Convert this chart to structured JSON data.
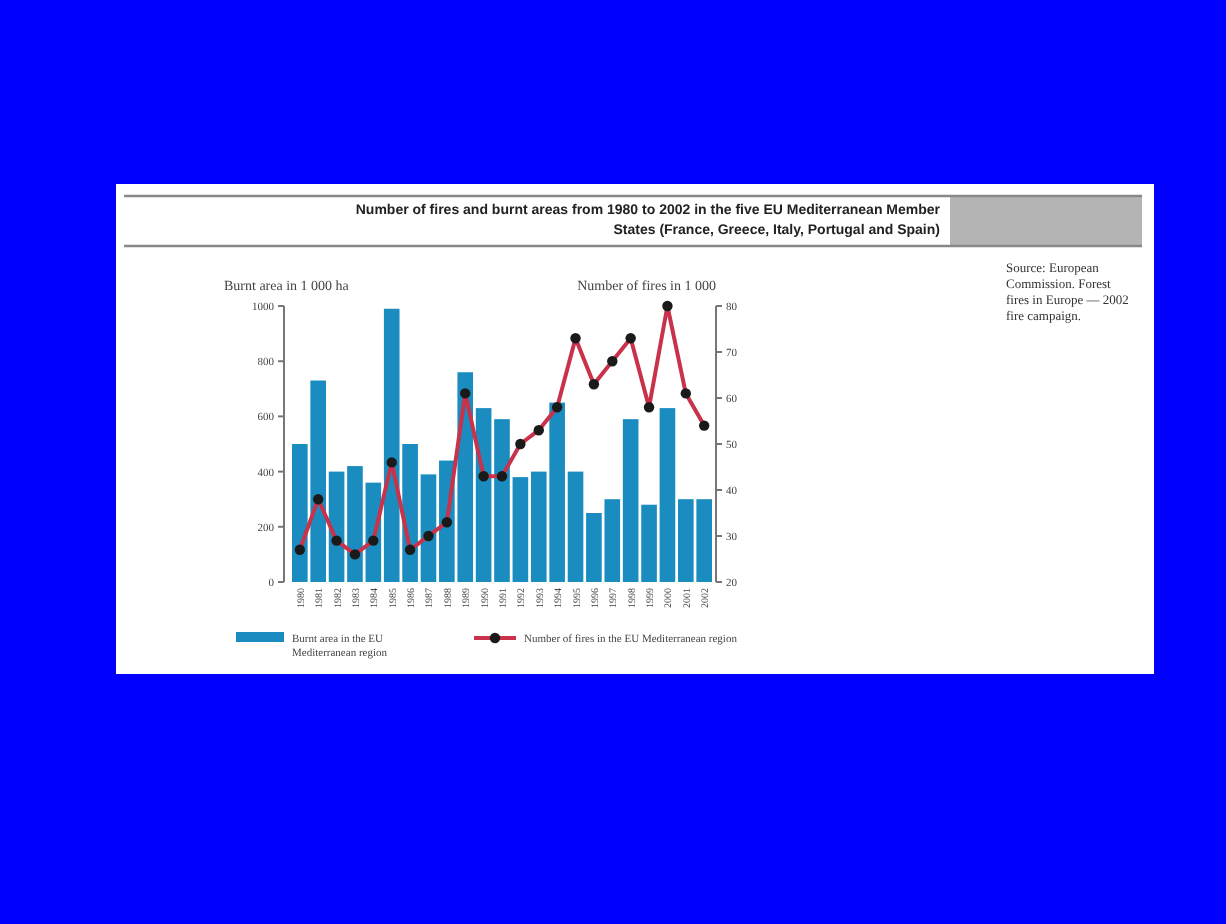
{
  "chart_data": {
    "type": "bar",
    "title": "Number of fires and burnt areas from 1980 to 2002 in the five EU Mediterranean Member States (France, Greece, Italy, Portugal and Spain)",
    "ylabel": "Burnt area in 1 000 ha",
    "y2label": "Number of fires in 1 000",
    "annotations": [
      "Source: European Commission. Forest fires in Europe — 2002 fire campaign."
    ],
    "categories": [
      "1980",
      "1981",
      "1982",
      "1983",
      "1984",
      "1985",
      "1986",
      "1987",
      "1988",
      "1989",
      "1990",
      "1991",
      "1992",
      "1993",
      "1994",
      "1995",
      "1996",
      "1997",
      "1998",
      "1999",
      "2000",
      "2001",
      "2002"
    ],
    "series": [
      {
        "name": "Burnt area in the EU Mediterranean region",
        "color": "#1a8cbf",
        "values": [
          500,
          730,
          400,
          420,
          360,
          990,
          500,
          390,
          440,
          760,
          630,
          590,
          380,
          400,
          650,
          400,
          250,
          300,
          590,
          280,
          630,
          300,
          300
        ]
      },
      {
        "name": "Number of fires in the EU Mediterranean region",
        "type": "line",
        "axis": "y2",
        "color": "#c8324a",
        "marker": "circle",
        "values": [
          27,
          38,
          29,
          26,
          29,
          46,
          27,
          30,
          33,
          61,
          43,
          43,
          50,
          53,
          58,
          73,
          63,
          68,
          73,
          58,
          80,
          61,
          54
        ]
      }
    ],
    "ylim": [
      0,
      1000
    ],
    "yticks": [
      0,
      200,
      400,
      600,
      800,
      1000
    ],
    "y2lim": [
      20,
      80
    ],
    "y2ticks": [
      20,
      30,
      40,
      50,
      60,
      70,
      80
    ],
    "grid": false,
    "legend": "bottom"
  }
}
